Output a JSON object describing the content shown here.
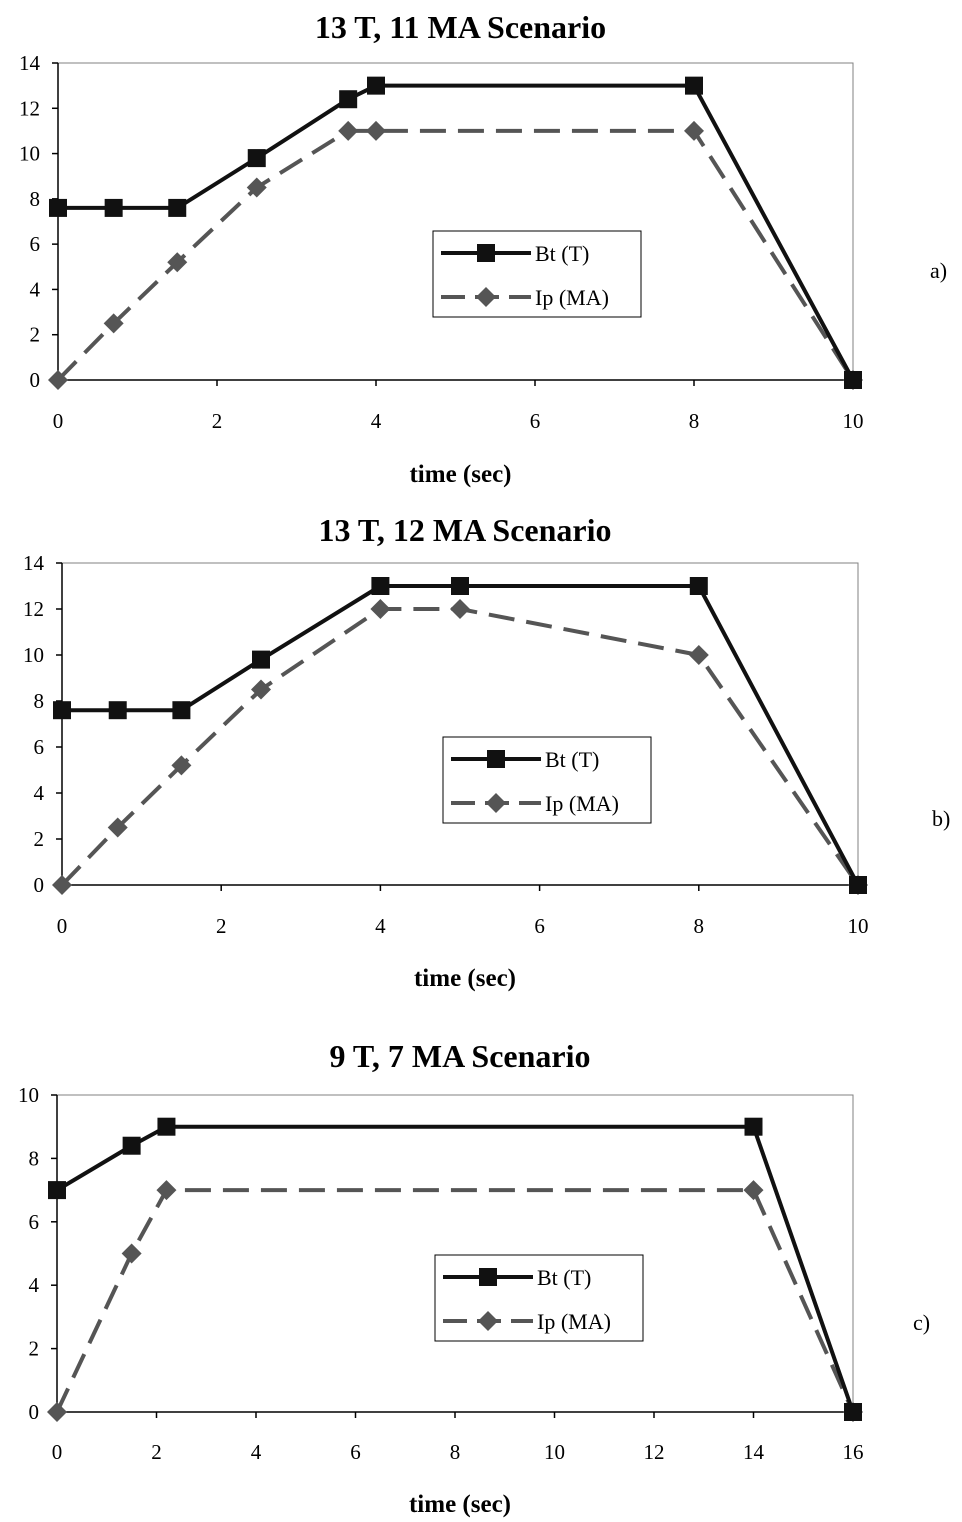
{
  "chart_data": [
    {
      "type": "line",
      "title": "13 T, 11 MA Scenario",
      "xlabel": "time (sec)",
      "ylabel": "",
      "panel_label": "a)",
      "xlim": [
        0,
        10
      ],
      "ylim": [
        0,
        14
      ],
      "x_ticks": [
        0,
        2,
        4,
        6,
        8,
        10
      ],
      "y_ticks": [
        0,
        2,
        4,
        6,
        8,
        10,
        12,
        14
      ],
      "grid": false,
      "legend": "center-right",
      "series": [
        {
          "name": "Bt (T)",
          "color": "#111111",
          "line_style": "solid",
          "marker": "square",
          "x": [
            0,
            0.7,
            1.5,
            2.5,
            3.65,
            4,
            8,
            10
          ],
          "y": [
            7.6,
            7.6,
            7.6,
            9.8,
            12.4,
            13,
            13,
            0
          ]
        },
        {
          "name": "Ip (MA)",
          "color": "#555555",
          "line_style": "dashed",
          "marker": "diamond",
          "x": [
            0,
            0.7,
            1.5,
            2.5,
            3.65,
            4,
            8,
            10
          ],
          "y": [
            0,
            2.5,
            5.2,
            8.5,
            11,
            11,
            11,
            0
          ]
        }
      ]
    },
    {
      "type": "line",
      "title": "13 T, 12 MA Scenario",
      "xlabel": "time (sec)",
      "ylabel": "",
      "panel_label": "b)",
      "xlim": [
        0,
        10
      ],
      "ylim": [
        0,
        14
      ],
      "x_ticks": [
        0,
        2,
        4,
        6,
        8,
        10
      ],
      "y_ticks": [
        0,
        2,
        4,
        6,
        8,
        10,
        12,
        14
      ],
      "grid": false,
      "legend": "center-right",
      "series": [
        {
          "name": "Bt (T)",
          "color": "#111111",
          "line_style": "solid",
          "marker": "square",
          "x": [
            0,
            0.7,
            1.5,
            2.5,
            4,
            5,
            8,
            10
          ],
          "y": [
            7.6,
            7.6,
            7.6,
            9.8,
            13,
            13,
            13,
            0
          ]
        },
        {
          "name": "Ip (MA)",
          "color": "#555555",
          "line_style": "dashed",
          "marker": "diamond",
          "x": [
            0,
            0.7,
            1.5,
            2.5,
            4,
            5,
            8,
            10
          ],
          "y": [
            0,
            2.5,
            5.2,
            8.5,
            12,
            12,
            10,
            0
          ]
        }
      ]
    },
    {
      "type": "line",
      "title": "9 T, 7 MA Scenario",
      "xlabel": "time (sec)",
      "ylabel": "",
      "panel_label": "c)",
      "xlim": [
        0,
        16
      ],
      "ylim": [
        0,
        10
      ],
      "x_ticks": [
        0,
        2,
        4,
        6,
        8,
        10,
        12,
        14,
        16
      ],
      "y_ticks": [
        0,
        2,
        4,
        6,
        8,
        10
      ],
      "grid": false,
      "legend": "center-right",
      "series": [
        {
          "name": "Bt (T)",
          "color": "#111111",
          "line_style": "solid",
          "marker": "square",
          "x": [
            0,
            1.5,
            2.2,
            14,
            16
          ],
          "y": [
            7,
            8.4,
            9,
            9,
            0
          ]
        },
        {
          "name": "Ip (MA)",
          "color": "#555555",
          "line_style": "dashed",
          "marker": "diamond",
          "x": [
            0,
            1.5,
            2.2,
            14,
            16
          ],
          "y": [
            0,
            5,
            7,
            7,
            0
          ]
        }
      ]
    }
  ]
}
